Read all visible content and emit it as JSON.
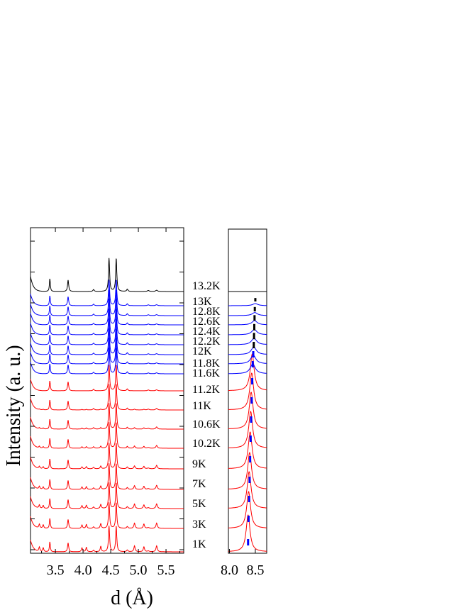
{
  "chart_data": [
    {
      "type": "line",
      "panel": "main",
      "xlabel": "d (Å)",
      "ylabel": "Intensity (a. u.)",
      "xlim": [
        3.05,
        5.82
      ],
      "xticks": [
        "3.5",
        "4.0",
        "4.5",
        "5.0",
        "5.5"
      ],
      "tick_values": [
        3.5,
        4.0,
        4.5,
        5.0,
        5.5
      ],
      "peaks": [
        {
          "d": 3.4,
          "w": 0.01,
          "h": 1.0
        },
        {
          "d": 3.73,
          "w": 0.012,
          "h": 0.9
        },
        {
          "d": 4.19,
          "w": 0.014,
          "h": 0.15
        },
        {
          "d": 4.47,
          "w": 0.012,
          "h": 2.6
        },
        {
          "d": 4.6,
          "w": 0.012,
          "h": 2.6
        },
        {
          "d": 4.8,
          "w": 0.014,
          "h": 0.18
        },
        {
          "d": 5.18,
          "w": 0.02,
          "h": 0.08
        },
        {
          "d": 5.33,
          "w": 0.02,
          "h": 0.1
        }
      ],
      "low_temperature_peaks": [
        {
          "d": 3.21,
          "w": 0.012,
          "h": 0.45
        },
        {
          "d": 3.28,
          "w": 0.012,
          "h": 0.4
        },
        {
          "d": 3.98,
          "w": 0.012,
          "h": 0.4
        },
        {
          "d": 4.06,
          "w": 0.012,
          "h": 0.45
        },
        {
          "d": 4.32,
          "w": 0.012,
          "h": 0.55
        },
        {
          "d": 4.93,
          "w": 0.014,
          "h": 0.6
        },
        {
          "d": 5.1,
          "w": 0.014,
          "h": 0.5
        },
        {
          "d": 5.33,
          "w": 0.014,
          "h": 0.5
        }
      ]
    },
    {
      "type": "line",
      "panel": "inset",
      "xlabel": "",
      "xlim": [
        7.98,
        8.72
      ],
      "xticks": [
        "8.0",
        "8.5"
      ],
      "tick_values": [
        8.0,
        8.5
      ],
      "marker": "dashed vertical line at peak position"
    }
  ],
  "series": [
    {
      "name": "1K",
      "color": "#ff0000",
      "inset_peak_d": 8.36
    },
    {
      "name": "3K",
      "color": "#ff0000",
      "inset_peak_d": 8.37
    },
    {
      "name": "5K",
      "color": "#ff0000",
      "inset_peak_d": 8.38
    },
    {
      "name": "7K",
      "color": "#ff0000",
      "inset_peak_d": 8.39
    },
    {
      "name": "9K",
      "color": "#ff0000",
      "inset_peak_d": 8.4
    },
    {
      "name": "10.2K",
      "color": "#ff0000",
      "inset_peak_d": 8.41
    },
    {
      "name": "10.6K",
      "color": "#ff0000",
      "inset_peak_d": 8.42
    },
    {
      "name": "11K",
      "color": "#ff0000",
      "inset_peak_d": 8.43
    },
    {
      "name": "11.2K",
      "color": "#ff0000",
      "inset_peak_d": 8.44
    },
    {
      "name": "11.6K",
      "color": "#0000ff",
      "inset_peak_d": 8.45
    },
    {
      "name": "11.8K",
      "color": "#0000ff",
      "inset_peak_d": 8.46
    },
    {
      "name": "12K",
      "color": "#0000ff",
      "inset_peak_d": 8.47
    },
    {
      "name": "12.2K",
      "color": "#0000ff",
      "inset_peak_d": 8.475
    },
    {
      "name": "12.4K",
      "color": "#0000ff",
      "inset_peak_d": 8.48
    },
    {
      "name": "12.6K",
      "color": "#0000ff",
      "inset_peak_d": 8.485
    },
    {
      "name": "12.8K",
      "color": "#0000ff",
      "inset_peak_d": 8.49
    },
    {
      "name": "13K",
      "color": "#0000ff",
      "inset_peak_d": 8.5
    },
    {
      "name": "13.2K",
      "color": "#000000",
      "inset_peak_d": null
    }
  ],
  "colors": {
    "low_temperature": "#ff0000",
    "mid_temperature": "#0000ff",
    "high_temperature": "#000000",
    "marker_low": "#0000ff",
    "marker_high": "#000000"
  }
}
